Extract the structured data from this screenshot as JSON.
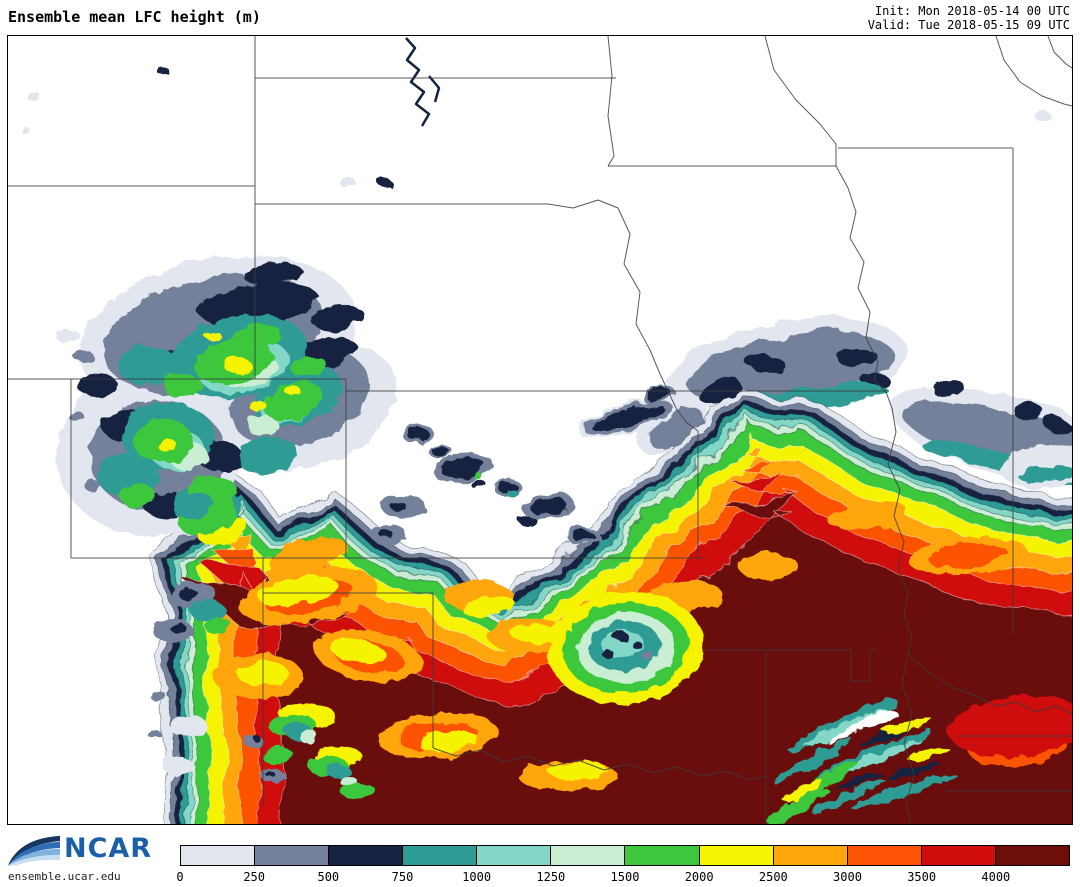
{
  "header": {
    "title": "Ensemble mean LFC height (m)",
    "init_line": "Init: Mon 2018-05-14 00 UTC",
    "valid_line": "Valid: Tue 2018-05-15 09 UTC"
  },
  "footer": {
    "logo_text": "NCAR",
    "site_url": "ensemble.ucar.edu"
  },
  "colorbar": {
    "ticks": [
      "0",
      "250",
      "500",
      "750",
      "1000",
      "1250",
      "1500",
      "2000",
      "2500",
      "3000",
      "3500",
      "4000"
    ],
    "colors": [
      "#e2e6ee",
      "#75819b",
      "#14233f",
      "#2e9b94",
      "#83d7c6",
      "#c9eed3",
      "#3dc73d",
      "#f6f303",
      "#ffa60d",
      "#fc5305",
      "#cf0d0d",
      "#6b0f08"
    ],
    "border_color": "#000000"
  }
}
